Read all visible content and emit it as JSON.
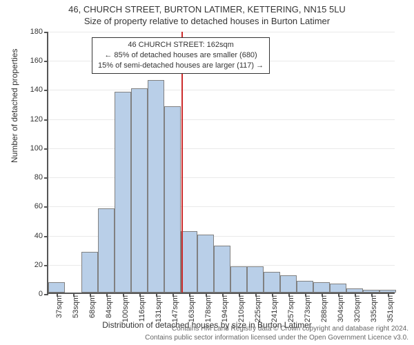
{
  "title_main": "46, CHURCH STREET, BURTON LATIMER, KETTERING, NN15 5LU",
  "title_sub": "Size of property relative to detached houses in Burton Latimer",
  "y_axis_label": "Number of detached properties",
  "x_axis_label": "Distribution of detached houses by size in Burton Latimer",
  "chart": {
    "type": "histogram",
    "ylim": [
      0,
      180
    ],
    "ytick_step": 20,
    "bar_fill": "#b9cfe8",
    "bar_stroke": "#808080",
    "grid_color": "#e9e9e9",
    "axis_color": "#555555",
    "refline_color": "#cc2b2b",
    "refline_x_index": 8,
    "x_labels": [
      "37sqm",
      "53sqm",
      "68sqm",
      "84sqm",
      "100sqm",
      "116sqm",
      "131sqm",
      "147sqm",
      "163sqm",
      "178sqm",
      "194sqm",
      "210sqm",
      "225sqm",
      "241sqm",
      "257sqm",
      "273sqm",
      "288sqm",
      "304sqm",
      "320sqm",
      "335sqm",
      "351sqm"
    ],
    "values": [
      7,
      0,
      28,
      58,
      138,
      140,
      146,
      128,
      42,
      40,
      32,
      18,
      18,
      14,
      12,
      8,
      7,
      6,
      3,
      2,
      2
    ]
  },
  "annotation": {
    "line1": "46 CHURCH STREET: 162sqm",
    "line2": "← 85% of detached houses are smaller (680)",
    "line3": "15% of semi-detached houses are larger (117) →"
  },
  "footer_line1": "Contains HM Land Registry data © Crown copyright and database right 2024.",
  "footer_line2": "Contains public sector information licensed under the Open Government Licence v3.0."
}
